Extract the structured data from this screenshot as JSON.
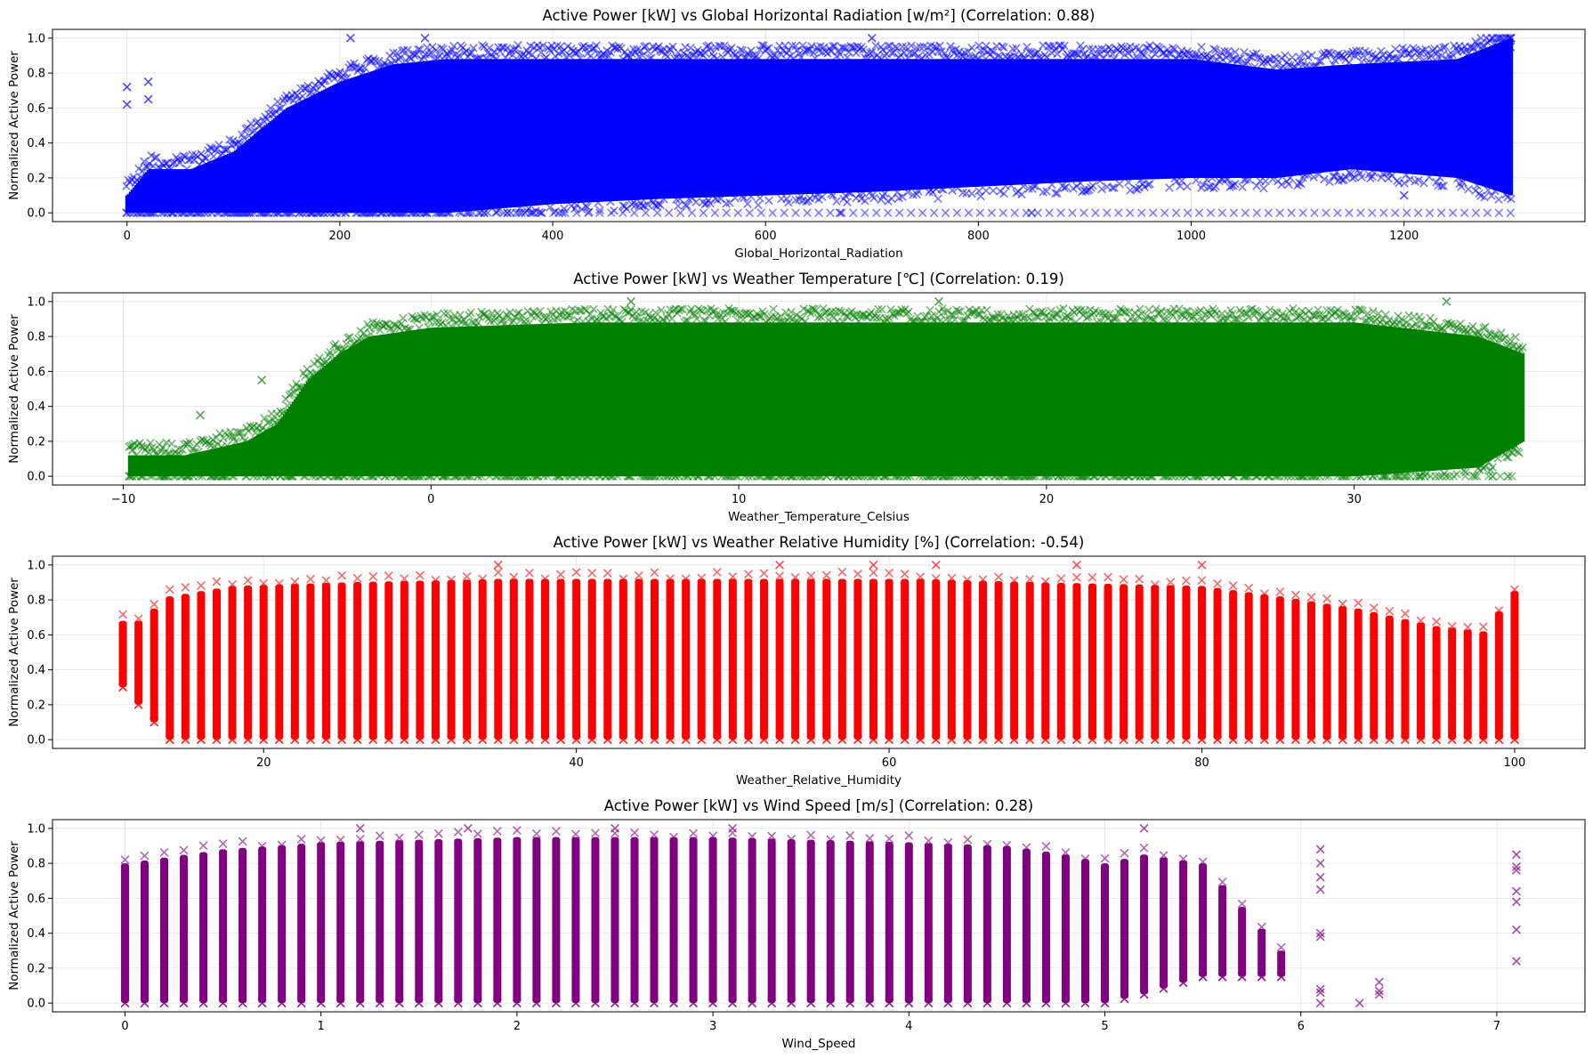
{
  "figure": {
    "background": "#ffffff",
    "grid_color": "#b0b0b0"
  },
  "chart_data": [
    {
      "type": "scatter",
      "title": "Active Power [kW] vs Global Horizontal Radiation [w/m²] (Correlation: 0.88)",
      "xlabel": "Global_Horizontal_Radiation",
      "ylabel": "Normalized Active Power",
      "color": "#0000ff",
      "marker": "x",
      "grid": true,
      "xlim": [
        -70,
        1370
      ],
      "ylim": [
        -0.05,
        1.05
      ],
      "xticks": [
        0,
        200,
        400,
        600,
        800,
        1000,
        1200
      ],
      "xtick_labels": [
        "0",
        "200",
        "400",
        "600",
        "800",
        "1000",
        "1200"
      ],
      "yticks": [
        0.0,
        0.2,
        0.4,
        0.6,
        0.8,
        1.0
      ],
      "ytick_labels": [
        "0.0",
        "0.2",
        "0.4",
        "0.6",
        "0.8",
        "1.0"
      ],
      "distribution": "continuous",
      "x_range": [
        0,
        1300
      ],
      "spread_profile": {
        "x": [
          0,
          20,
          60,
          100,
          150,
          200,
          250,
          300,
          400,
          500,
          600,
          700,
          800,
          900,
          1000,
          1080,
          1150,
          1250,
          1300
        ],
        "y_low": [
          0.0,
          0.0,
          0.0,
          0.0,
          0.0,
          0.0,
          0.0,
          0.0,
          0.05,
          0.08,
          0.1,
          0.12,
          0.15,
          0.18,
          0.2,
          0.2,
          0.25,
          0.2,
          0.1
        ],
        "y_high": [
          0.1,
          0.25,
          0.25,
          0.35,
          0.6,
          0.75,
          0.85,
          0.88,
          0.88,
          0.88,
          0.88,
          0.88,
          0.88,
          0.88,
          0.88,
          0.82,
          0.85,
          0.88,
          1.0
        ]
      },
      "outliers": [
        [
          0,
          0.72
        ],
        [
          0,
          0.62
        ],
        [
          20,
          0.75
        ],
        [
          20,
          0.65
        ],
        [
          210,
          1.0
        ],
        [
          280,
          1.0
        ],
        [
          700,
          1.0
        ],
        [
          1300,
          1.0
        ],
        [
          1300,
          0.95
        ],
        [
          1290,
          0.2
        ],
        [
          1200,
          0.1
        ],
        [
          850,
          0.0
        ],
        [
          670,
          0.0
        ]
      ]
    },
    {
      "type": "scatter",
      "title": "Active Power [kW] vs Weather Temperature [℃] (Correlation: 0.19)",
      "xlabel": "Weather_Temperature_Celsius",
      "ylabel": "Normalized Active Power",
      "color": "#008000",
      "marker": "x",
      "grid": true,
      "xlim": [
        -12.3,
        37.5
      ],
      "ylim": [
        -0.05,
        1.05
      ],
      "xticks": [
        -10,
        0,
        10,
        20,
        30
      ],
      "xtick_labels": [
        "−10",
        "0",
        "10",
        "20",
        "30"
      ],
      "yticks": [
        0.0,
        0.2,
        0.4,
        0.6,
        0.8,
        1.0
      ],
      "ytick_labels": [
        "0.0",
        "0.2",
        "0.4",
        "0.6",
        "0.8",
        "1.0"
      ],
      "distribution": "continuous",
      "x_range": [
        -9.8,
        35.5
      ],
      "spread_profile": {
        "x": [
          -9.8,
          -8,
          -6,
          -5,
          -4,
          -3,
          -2,
          0,
          5,
          10,
          20,
          30,
          34,
          35.5
        ],
        "y_low": [
          0.0,
          0.0,
          0.0,
          0.0,
          0.0,
          0.0,
          0.0,
          0.0,
          0.0,
          0.0,
          0.0,
          0.0,
          0.05,
          0.2
        ],
        "y_high": [
          0.12,
          0.12,
          0.2,
          0.3,
          0.55,
          0.7,
          0.8,
          0.85,
          0.88,
          0.88,
          0.88,
          0.88,
          0.8,
          0.7
        ]
      },
      "outliers": [
        [
          -9.7,
          0.15
        ],
        [
          -7.5,
          0.35
        ],
        [
          -5.5,
          0.55
        ],
        [
          6.5,
          1.0
        ],
        [
          16.5,
          1.0
        ],
        [
          33,
          1.0
        ],
        [
          34.5,
          0.0
        ],
        [
          35,
          0.0
        ]
      ]
    },
    {
      "type": "scatter",
      "title": "Active Power [kW] vs Weather Relative Humidity [%] (Correlation: -0.54)",
      "xlabel": "Weather_Relative_Humidity",
      "ylabel": "Normalized Active Power",
      "color": "#ff0000",
      "marker": "x",
      "grid": true,
      "xlim": [
        6.5,
        104.5
      ],
      "ylim": [
        -0.05,
        1.05
      ],
      "xticks": [
        20,
        40,
        60,
        80,
        100
      ],
      "xtick_labels": [
        "20",
        "40",
        "60",
        "80",
        "100"
      ],
      "yticks": [
        0.0,
        0.2,
        0.4,
        0.6,
        0.8,
        1.0
      ],
      "ytick_labels": [
        "0.0",
        "0.2",
        "0.4",
        "0.6",
        "0.8",
        "1.0"
      ],
      "distribution": "stripes",
      "stripe_start": 11,
      "stripe_end": 100,
      "stripe_step": 1,
      "spread_profile": {
        "x": [
          11,
          12,
          13,
          14,
          16,
          18,
          25,
          35,
          45,
          55,
          62,
          70,
          80,
          85,
          90,
          95,
          98,
          100
        ],
        "y_low": [
          0.3,
          0.2,
          0.1,
          0.0,
          0.0,
          0.0,
          0.0,
          0.0,
          0.0,
          0.0,
          0.0,
          0.0,
          0.0,
          0.0,
          0.0,
          0.0,
          0.0,
          0.0
        ],
        "y_high": [
          0.68,
          0.68,
          0.75,
          0.82,
          0.85,
          0.88,
          0.9,
          0.92,
          0.92,
          0.92,
          0.92,
          0.9,
          0.88,
          0.82,
          0.75,
          0.65,
          0.62,
          0.85
        ]
      },
      "outliers": [
        [
          35,
          1.0
        ],
        [
          53,
          1.0
        ],
        [
          59,
          1.0
        ],
        [
          63,
          1.0
        ],
        [
          72,
          1.0
        ],
        [
          80,
          1.0
        ],
        [
          82,
          0.75
        ],
        [
          96,
          0.62
        ]
      ]
    },
    {
      "type": "scatter",
      "title": "Active Power [kW] vs Wind Speed [m/s] (Correlation: 0.28)",
      "xlabel": "Wind_Speed",
      "ylabel": "Normalized Active Power",
      "color": "#800080",
      "marker": "x",
      "grid": true,
      "xlim": [
        -0.37,
        7.45
      ],
      "ylim": [
        -0.05,
        1.05
      ],
      "xticks": [
        0,
        1,
        2,
        3,
        4,
        5,
        6,
        7
      ],
      "xtick_labels": [
        "0",
        "1",
        "2",
        "3",
        "4",
        "5",
        "6",
        "7"
      ],
      "yticks": [
        0.0,
        0.2,
        0.4,
        0.6,
        0.8,
        1.0
      ],
      "ytick_labels": [
        "0.0",
        "0.2",
        "0.4",
        "0.6",
        "0.8",
        "1.0"
      ],
      "distribution": "stripes",
      "stripe_start": 0,
      "stripe_end": 5.9,
      "stripe_step": 0.1,
      "spread_profile": {
        "x": [
          0,
          0.5,
          1,
          2,
          3,
          4,
          4.5,
          4.8,
          5.0,
          5.2,
          5.5,
          5.9
        ],
        "y_low": [
          0.0,
          0.0,
          0.0,
          0.0,
          0.0,
          0.0,
          0.0,
          0.0,
          0.0,
          0.05,
          0.15,
          0.15
        ],
        "y_high": [
          0.8,
          0.88,
          0.92,
          0.95,
          0.95,
          0.92,
          0.9,
          0.85,
          0.8,
          0.85,
          0.8,
          0.3
        ]
      },
      "extra_points": [
        [
          6.1,
          0.88
        ],
        [
          6.1,
          0.8
        ],
        [
          6.1,
          0.72
        ],
        [
          6.1,
          0.65
        ],
        [
          6.1,
          0.4
        ],
        [
          6.1,
          0.38
        ],
        [
          6.1,
          0.08
        ],
        [
          6.1,
          0.06
        ],
        [
          6.1,
          0.0
        ],
        [
          6.3,
          0.0
        ],
        [
          6.4,
          0.12
        ],
        [
          6.4,
          0.07
        ],
        [
          6.4,
          0.05
        ],
        [
          7.1,
          0.85
        ],
        [
          7.1,
          0.78
        ],
        [
          7.1,
          0.76
        ],
        [
          7.1,
          0.64
        ],
        [
          7.1,
          0.58
        ],
        [
          7.1,
          0.42
        ],
        [
          7.1,
          0.24
        ]
      ],
      "outliers": [
        [
          1.2,
          1.0
        ],
        [
          1.75,
          1.0
        ],
        [
          2.5,
          1.0
        ],
        [
          3.1,
          1.0
        ],
        [
          5.2,
          1.0
        ],
        [
          5.9,
          0.27
        ]
      ]
    }
  ]
}
